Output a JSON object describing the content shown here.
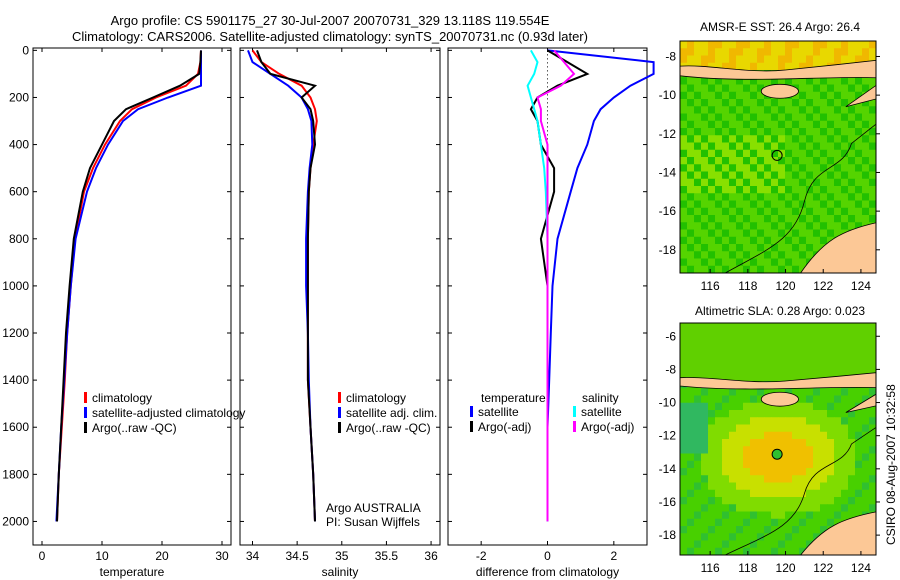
{
  "header": {
    "title_line1": "Argo profile: CS 5901175_27 30-Jul-2007 20070731_329 13.118S 119.554E",
    "title_line2": "Climatology: CARS2006. Satellite-adjusted climatology: synTS_20070731.nc (0.93d later)"
  },
  "side_label": "CSIRO 08-Aug-2007 10:32:58",
  "colors": {
    "climatology": "#ff0000",
    "satellite": "#0000ff",
    "argo": "#000000",
    "sal_satellite": "#00ffff",
    "sal_argo": "#ff00ff"
  },
  "chart_data": [
    {
      "type": "line",
      "id": "temperature",
      "xlabel": "temperature",
      "ylabel": "",
      "xlim": [
        -1.5,
        31.5
      ],
      "ylim": [
        2100,
        -10
      ],
      "xticks": [
        0,
        10,
        20,
        30
      ],
      "yticks": [
        0,
        200,
        400,
        600,
        800,
        1000,
        1200,
        1400,
        1600,
        1800,
        2000
      ],
      "depth": [
        0,
        50,
        100,
        150,
        200,
        250,
        300,
        400,
        500,
        600,
        800,
        1000,
        1200,
        1400,
        1600,
        1800,
        2000
      ],
      "series": [
        {
          "name": "climatology",
          "color": "#ff0000",
          "values": [
            26.5,
            26.4,
            26,
            24,
            19,
            15,
            13,
            10.5,
            8.5,
            7,
            5.5,
            4.8,
            4.2,
            3.8,
            3.3,
            2.8,
            2.5
          ]
        },
        {
          "name": "satellite-adjusted climatology",
          "color": "#0000ff",
          "values": [
            26.5,
            26.5,
            26.5,
            26.5,
            21,
            16,
            13.5,
            11,
            9,
            7.5,
            5.6,
            4.8,
            4.2,
            3.7,
            3.2,
            2.8,
            2.4
          ]
        },
        {
          "name": "Argo(..raw -QC)",
          "color": "#000000",
          "values": [
            26.5,
            26.4,
            26.2,
            23,
            18.5,
            14,
            12,
            10,
            8,
            6.8,
            5.3,
            4.6,
            4,
            3.6,
            3.2,
            2.8,
            2.5
          ]
        }
      ],
      "legend_position": "bottom-right"
    },
    {
      "type": "line",
      "id": "salinity",
      "xlabel": "salinity",
      "xlim": [
        33.86,
        36.1
      ],
      "ylim": [
        2100,
        -10
      ],
      "xticks": [
        34,
        34.5,
        35,
        35.5,
        36
      ],
      "depth": [
        0,
        50,
        100,
        150,
        200,
        250,
        300,
        400,
        500,
        600,
        800,
        1000,
        1200,
        1400,
        1600,
        1800,
        2000
      ],
      "series": [
        {
          "name": "climatology",
          "color": "#ff0000",
          "values": [
            34.0,
            34.1,
            34.3,
            34.55,
            34.65,
            34.7,
            34.72,
            34.68,
            34.65,
            34.63,
            34.62,
            34.62,
            34.62,
            34.62,
            34.65,
            34.68,
            34.7
          ]
        },
        {
          "name": "satellite adj. clim.",
          "color": "#0000ff",
          "values": [
            33.95,
            34.0,
            34.2,
            34.4,
            34.55,
            34.62,
            34.66,
            34.67,
            34.64,
            34.62,
            34.6,
            34.6,
            34.62,
            34.63,
            34.65,
            34.68,
            34.7
          ]
        },
        {
          "name": "Argo(..raw -QC)",
          "color": "#000000",
          "values": [
            34.05,
            34.1,
            34.2,
            34.7,
            34.55,
            34.65,
            34.68,
            34.7,
            34.65,
            34.63,
            34.62,
            34.62,
            34.62,
            34.62,
            34.65,
            34.68,
            34.7
          ]
        }
      ],
      "annotation_line1": "Argo AUSTRALIA",
      "annotation_line2": "PI: Susan Wijffels",
      "legend_position": "bottom-right"
    },
    {
      "type": "line",
      "id": "difference",
      "xlabel": "difference from climatology",
      "xlim": [
        -3,
        3
      ],
      "ylim": [
        2100,
        -10
      ],
      "xticks": [
        -2,
        0,
        2
      ],
      "depth": [
        0,
        50,
        100,
        150,
        200,
        250,
        300,
        400,
        500,
        600,
        800,
        1000,
        1200,
        1400,
        1600,
        1800,
        2000
      ],
      "series": [
        {
          "name": "temperature satellite",
          "color": "#0000ff",
          "values": [
            0,
            3.2,
            3.2,
            2.5,
            2,
            1.6,
            1.4,
            1.2,
            0.9,
            0.7,
            0.3,
            0.15,
            0.1,
            0.05,
            0,
            0,
            0
          ]
        },
        {
          "name": "temperature Argo(-adj)",
          "color": "#000000",
          "values": [
            0,
            0.6,
            1.2,
            0.3,
            -0.3,
            -0.5,
            -0.3,
            -0.2,
            0.2,
            0.2,
            -0.2,
            0,
            0,
            0,
            0,
            0,
            0
          ]
        },
        {
          "name": "salinity satellite",
          "color": "#00ffff",
          "values": [
            -0.5,
            -0.3,
            -0.4,
            -0.6,
            -0.5,
            -0.4,
            -0.3,
            -0.2,
            -0.1,
            -0.05,
            0,
            0,
            0,
            0,
            0,
            0,
            0
          ]
        },
        {
          "name": "salinity Argo(-adj)",
          "color": "#ff00ff",
          "values": [
            0.2,
            0.5,
            0.8,
            0.4,
            -0.3,
            -0.2,
            -0.2,
            0,
            0,
            0,
            0,
            0,
            0,
            0,
            0,
            0,
            0
          ]
        }
      ],
      "legend_temperature_header": "temperature",
      "legend_salinity_header": "salinity",
      "legend_satellite": "satellite",
      "legend_argo": "Argo(-adj)",
      "legend_position": "bottom"
    },
    {
      "type": "heatmap",
      "id": "sst-map",
      "title": "AMSR-E SST: 26.4 Argo: 26.4",
      "xlim": [
        114.4,
        124.8
      ],
      "ylim": [
        -7.2,
        -19.2
      ],
      "xticks": [
        116,
        118,
        120,
        122,
        124
      ],
      "yticks": [
        -8,
        -10,
        -12,
        -14,
        -16,
        -18
      ],
      "marker": {
        "lon": 119.554,
        "lat": -13.118
      }
    },
    {
      "type": "heatmap",
      "id": "sla-map",
      "title": "Altimetric SLA: 0.28 Argo: 0.023",
      "xlim": [
        114.4,
        124.8
      ],
      "ylim": [
        -5.2,
        -19.2
      ],
      "xticks": [
        116,
        118,
        120,
        122,
        124
      ],
      "yticks": [
        -6,
        -8,
        -10,
        -12,
        -14,
        -16,
        -18
      ],
      "marker": {
        "lon": 119.554,
        "lat": -13.118
      }
    }
  ]
}
